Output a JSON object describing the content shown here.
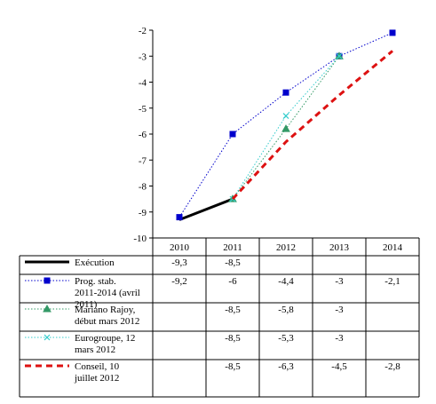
{
  "chart_data": {
    "type": "line",
    "title": "",
    "xlabel": "",
    "ylabel": "",
    "categories": [
      "2010",
      "2011",
      "2012",
      "2013",
      "2014"
    ],
    "ylim": [
      -10,
      -2
    ],
    "yticks": [
      "-2",
      "-3",
      "-4",
      "-5",
      "-6",
      "-7",
      "-8",
      "-9",
      "-10"
    ],
    "grid": false,
    "legend": "table-below",
    "series": [
      {
        "name": "Exécution",
        "color": "#000000",
        "line_style": "solid-thick",
        "marker": "none",
        "values": [
          -9.3,
          -8.5,
          null,
          null,
          null
        ],
        "labels": [
          "-9,3",
          "-8,5",
          "",
          "",
          ""
        ]
      },
      {
        "name": "Prog. stab. 2011-2014 (avril 2011)",
        "color": "#0000cc",
        "line_style": "dotted",
        "marker": "square",
        "values": [
          -9.2,
          -6,
          -4.4,
          -3,
          -2.1
        ],
        "labels": [
          "-9,2",
          "-6",
          "-4,4",
          "-3",
          "-2,1"
        ]
      },
      {
        "name": "Mariano Rajoy, début mars 2012",
        "color": "#339966",
        "line_style": "dotted",
        "marker": "triangle",
        "values": [
          null,
          -8.5,
          -5.8,
          -3,
          null
        ],
        "labels": [
          "",
          "-8,5",
          "-5,8",
          "-3",
          ""
        ]
      },
      {
        "name": "Eurogroupe, 12 mars 2012",
        "color": "#33cccc",
        "line_style": "dotted",
        "marker": "x",
        "values": [
          null,
          -8.5,
          -5.3,
          -3,
          null
        ],
        "labels": [
          "",
          "-8,5",
          "-5,3",
          "-3",
          ""
        ]
      },
      {
        "name": "Conseil, 10 juillet 2012",
        "color": "#dd1111",
        "line_style": "dashed-thick",
        "marker": "none",
        "values": [
          null,
          -8.5,
          -6.3,
          -4.5,
          -2.8
        ],
        "labels": [
          "",
          "-8,5",
          "-6,3",
          "-4,5",
          "-2,8"
        ]
      }
    ]
  }
}
